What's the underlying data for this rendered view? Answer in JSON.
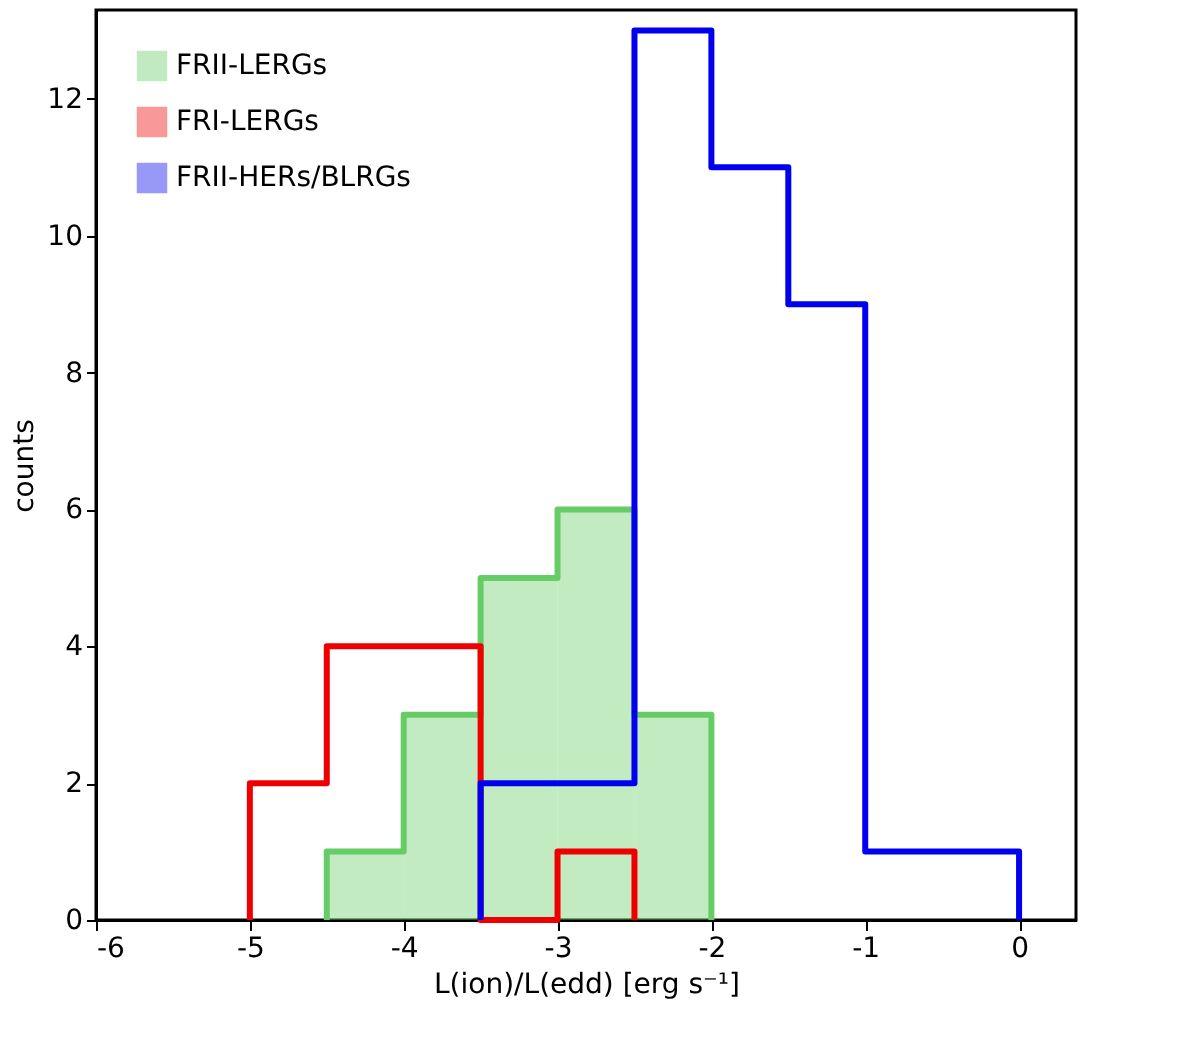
{
  "chart_data": {
    "type": "step",
    "xlabel": "L(ion)/L(edd) [erg s⁻¹]",
    "ylabel": "counts",
    "series": [
      {
        "name": "FRII-LERGs",
        "type": "area",
        "color": "#66cc66",
        "x": [
          -4.5,
          -4.5,
          -4,
          -3.5,
          -3,
          -2.5,
          -2,
          -2
        ],
        "values": [
          0,
          1,
          3,
          5,
          6,
          3,
          3,
          0
        ]
      },
      {
        "name": "FRI-LERGs",
        "color": "#ee0000",
        "x": [
          -5,
          -5,
          -4.5,
          -4,
          -3.5,
          -3,
          -2.5,
          -2.5
        ],
        "values": [
          0,
          2,
          4,
          4,
          0,
          1,
          1,
          0
        ]
      },
      {
        "name": "FRII-HERs/BLRGs",
        "color": "#0000ee",
        "x": [
          -3.5,
          -3.5,
          -3,
          -2.5,
          -2,
          -1.5,
          -1,
          -0.5,
          0,
          0
        ],
        "values": [
          0,
          2,
          2,
          13,
          11,
          9,
          1,
          1,
          1,
          0
        ]
      }
    ],
    "xlim": [
      -6,
      0.37
    ],
    "ylim": [
      0,
      13.3
    ],
    "xticks": [
      {
        "value": -6,
        "label": "-6"
      },
      {
        "value": -5,
        "label": "-5"
      },
      {
        "value": -4,
        "label": "-4"
      },
      {
        "value": -3,
        "label": "-3"
      },
      {
        "value": -2,
        "label": "-2"
      },
      {
        "value": -1,
        "label": "-1"
      },
      {
        "value": 0,
        "label": "0"
      }
    ],
    "yticks": [
      0,
      2,
      4,
      6,
      8,
      10,
      12
    ],
    "grid": false,
    "legend": "top left"
  }
}
